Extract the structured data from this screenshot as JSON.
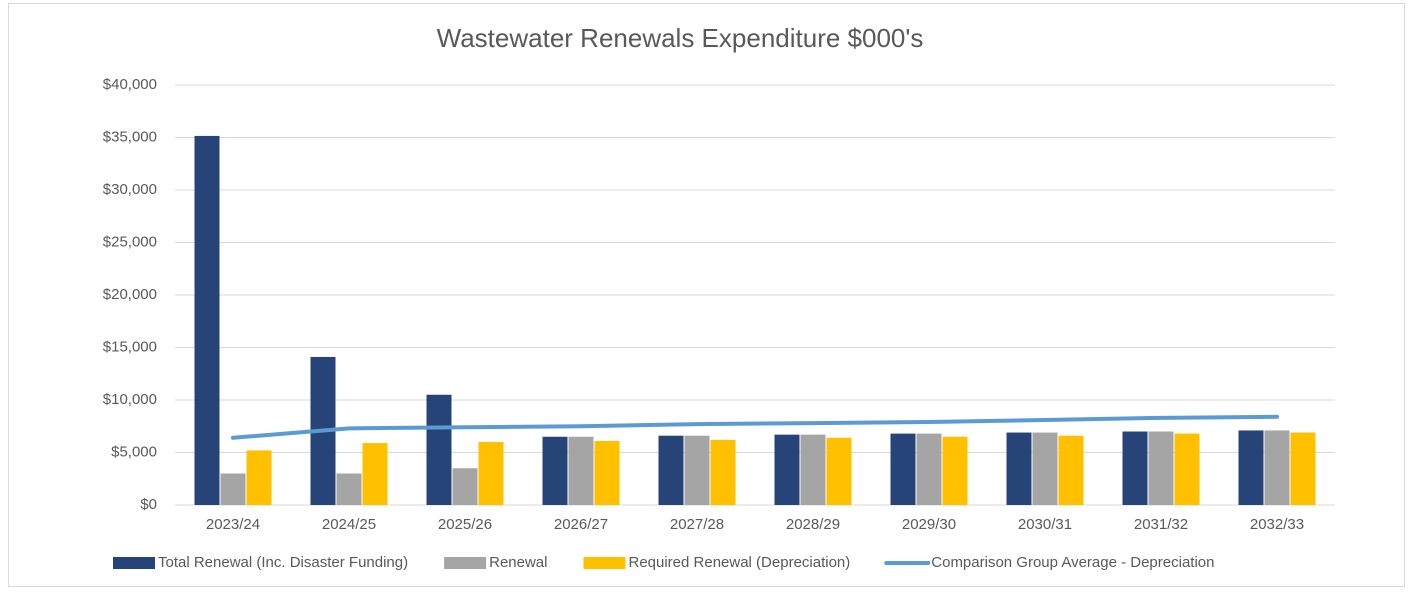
{
  "chart_data": {
    "type": "bar",
    "title": "Wastewater Renewals Expenditure $000's",
    "categories": [
      "2023/24",
      "2024/25",
      "2025/26",
      "2026/27",
      "2027/28",
      "2028/29",
      "2029/30",
      "2030/31",
      "2031/32",
      "2032/33"
    ],
    "series": [
      {
        "name": "Total Renewal (Inc. Disaster Funding)",
        "color": "#264478",
        "type": "bar",
        "values": [
          35150,
          14100,
          10500,
          6500,
          6600,
          6700,
          6800,
          6900,
          7000,
          7100
        ]
      },
      {
        "name": "Renewal",
        "color": "#a5a5a5",
        "type": "bar",
        "values": [
          3000,
          3000,
          3500,
          6500,
          6600,
          6700,
          6800,
          6900,
          7000,
          7100
        ]
      },
      {
        "name": "Required Renewal (Depreciation)",
        "color": "#ffc000",
        "type": "bar",
        "values": [
          5200,
          5900,
          6000,
          6100,
          6200,
          6400,
          6500,
          6600,
          6800,
          6900
        ]
      },
      {
        "name": "Comparison Group Average -  Depreciation",
        "color": "#5b9bd5",
        "type": "line",
        "values": [
          6400,
          7300,
          7400,
          7500,
          7700,
          7800,
          7900,
          8100,
          8300,
          8400
        ]
      }
    ],
    "ylim": [
      0,
      40000
    ],
    "yticks": [
      {
        "value": 0,
        "label": "$0"
      },
      {
        "value": 5000,
        "label": "$5,000"
      },
      {
        "value": 10000,
        "label": "$10,000"
      },
      {
        "value": 15000,
        "label": "$15,000"
      },
      {
        "value": 20000,
        "label": "$20,000"
      },
      {
        "value": 25000,
        "label": "$25,000"
      },
      {
        "value": 30000,
        "label": "$30,000"
      },
      {
        "value": 35000,
        "label": "$35,000"
      },
      {
        "value": 40000,
        "label": "$40,000"
      }
    ],
    "grid": true,
    "legend": "bottom"
  }
}
